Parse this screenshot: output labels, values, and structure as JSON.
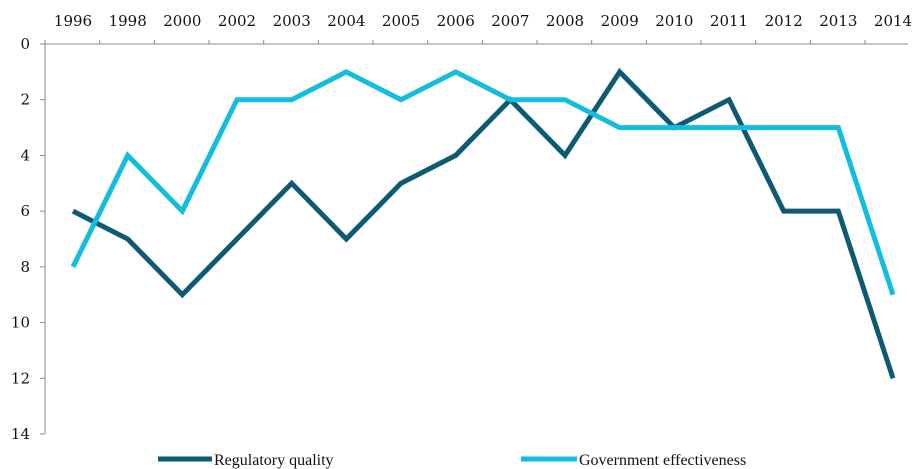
{
  "chart_data": {
    "type": "line",
    "categories": [
      "1996",
      "1998",
      "2000",
      "2002",
      "2003",
      "2004",
      "2005",
      "2006",
      "2007",
      "2008",
      "2009",
      "2010",
      "2011",
      "2012",
      "2013",
      "2014"
    ],
    "series": [
      {
        "name": "Regulatory quality",
        "color": "#0e5a74",
        "values": [
          6,
          7,
          9,
          7,
          5,
          7,
          5,
          4,
          2,
          4,
          1,
          3,
          2,
          6,
          6,
          12
        ]
      },
      {
        "name": "Government effectiveness",
        "color": "#12bde0",
        "values": [
          8,
          4,
          6,
          2,
          2,
          1,
          2,
          1,
          2,
          2,
          3,
          3,
          3,
          3,
          3,
          9
        ]
      }
    ],
    "ylim": [
      0,
      14
    ],
    "y_inverted": true,
    "y_ticks": [
      0,
      2,
      4,
      6,
      8,
      10,
      12,
      14
    ],
    "x_axis_position": "top",
    "grid": false,
    "legend_position": "bottom"
  }
}
